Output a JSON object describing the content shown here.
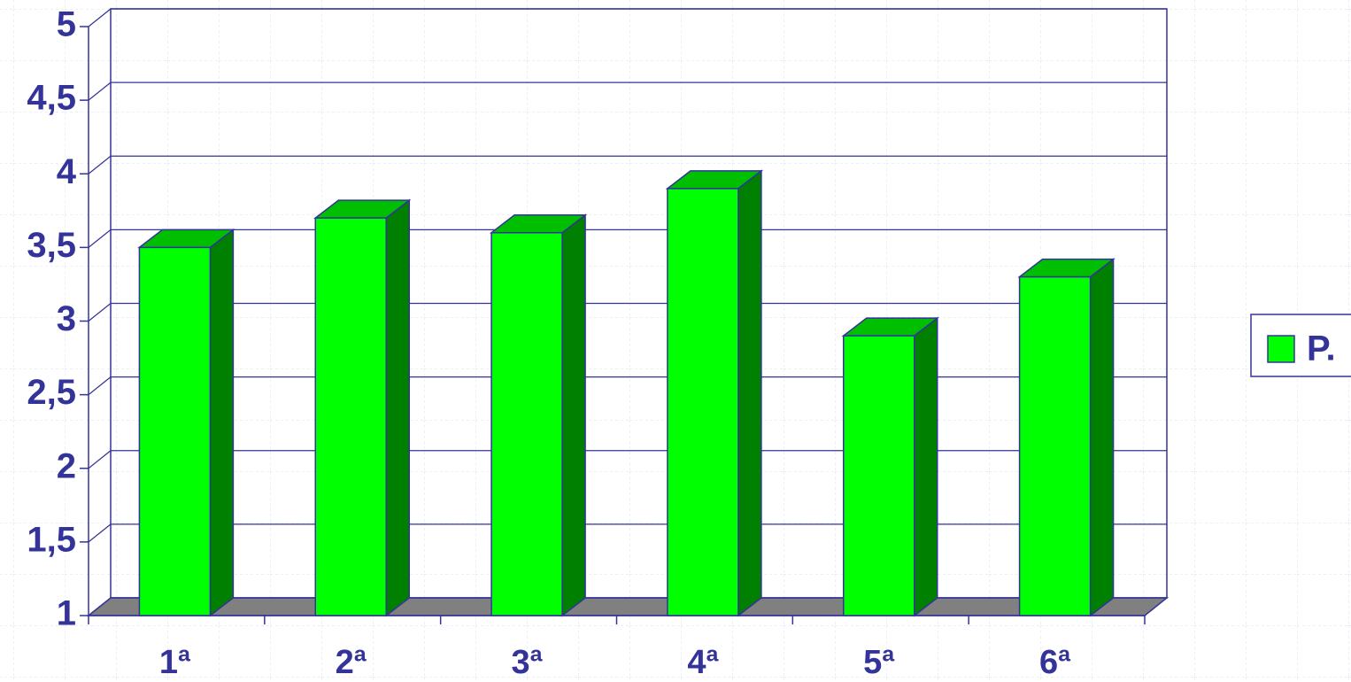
{
  "chart_data": {
    "type": "bar",
    "categories": [
      "1ª",
      "2ª",
      "3ª",
      "4ª",
      "5ª",
      "6ª"
    ],
    "series": [
      {
        "name": "P.",
        "color": "#00ff00",
        "values": [
          3.5,
          3.7,
          3.6,
          3.9,
          2.9,
          3.3
        ]
      }
    ],
    "ylim": [
      1,
      5
    ],
    "yticks": [
      1,
      {
        "value": 1.5,
        "label": "1,5"
      },
      2,
      {
        "value": 2.5,
        "label": "2,5"
      },
      3,
      {
        "value": 3.5,
        "label": "3,5"
      },
      4,
      {
        "value": 4.5,
        "label": "4,5"
      },
      5
    ],
    "grid": true,
    "legend": "right"
  }
}
